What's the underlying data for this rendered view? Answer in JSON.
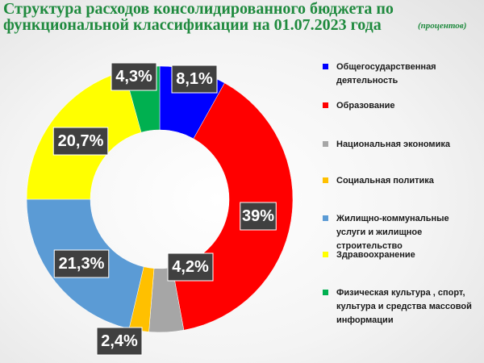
{
  "title": "Структура расходов консолидированного бюджета по функциональной классификации на 01.07.2023 года",
  "units": "(процентов)",
  "chart_data": {
    "type": "donut",
    "title": "Структура расходов консолидированного бюджета по функциональной классификации на 01.07.2023 года",
    "units": "(процентов)",
    "legend_position": "right",
    "slices": [
      {
        "name": "Общегосударственная деятельность",
        "value": 8.1,
        "label": "8,1%",
        "color": "#0000ff"
      },
      {
        "name": "Образование",
        "value": 39,
        "label": "39%",
        "color": "#ff0000"
      },
      {
        "name": "Национальная экономика",
        "value": 4.2,
        "label": "4,2%",
        "color": "#a6a6a6"
      },
      {
        "name": "Социальная политика",
        "value": 2.4,
        "label": "2,4%",
        "color": "#ffc000"
      },
      {
        "name": "Жилищно-коммунальные услуги и жилищное строительство",
        "value": 21.3,
        "label": "21,3%",
        "color": "#5b9bd5"
      },
      {
        "name": "Здравоохранение",
        "value": 20.7,
        "label": "20,7%",
        "color": "#ffff00"
      },
      {
        "name": "Физическая культура , спорт, культура и средства массовой информации",
        "value": 4.3,
        "label": "4,3%",
        "color": "#00b050"
      }
    ]
  }
}
